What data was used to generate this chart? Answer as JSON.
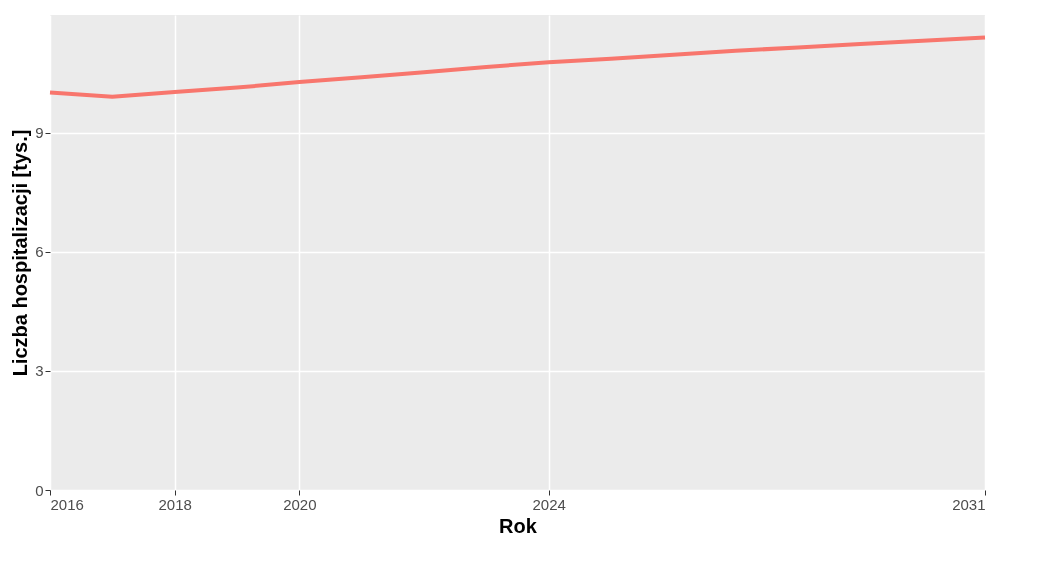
{
  "chart_data": {
    "type": "line",
    "xlabel": "Rok",
    "ylabel": "Liczba hospitalizacji [tys.]",
    "x": [
      2016,
      2017,
      2018,
      2019,
      2020,
      2021,
      2022,
      2023,
      2024,
      2025,
      2026,
      2027,
      2028,
      2029,
      2030,
      2031
    ],
    "series": [
      {
        "color": "#f8766d",
        "values": [
          10.02,
          9.91,
          10.03,
          10.14,
          10.28,
          10.4,
          10.53,
          10.66,
          10.78,
          10.87,
          10.97,
          11.07,
          11.15,
          11.24,
          11.32,
          11.4
        ]
      }
    ],
    "xlim": [
      2016,
      2031
    ],
    "xticks": [
      2016,
      2018,
      2020,
      2024,
      2031
    ],
    "ylim": [
      0,
      11.97
    ],
    "yticks": [
      0,
      3,
      6,
      9
    ],
    "grid": true,
    "legend": false,
    "marker": "none",
    "line_style": "solid"
  }
}
